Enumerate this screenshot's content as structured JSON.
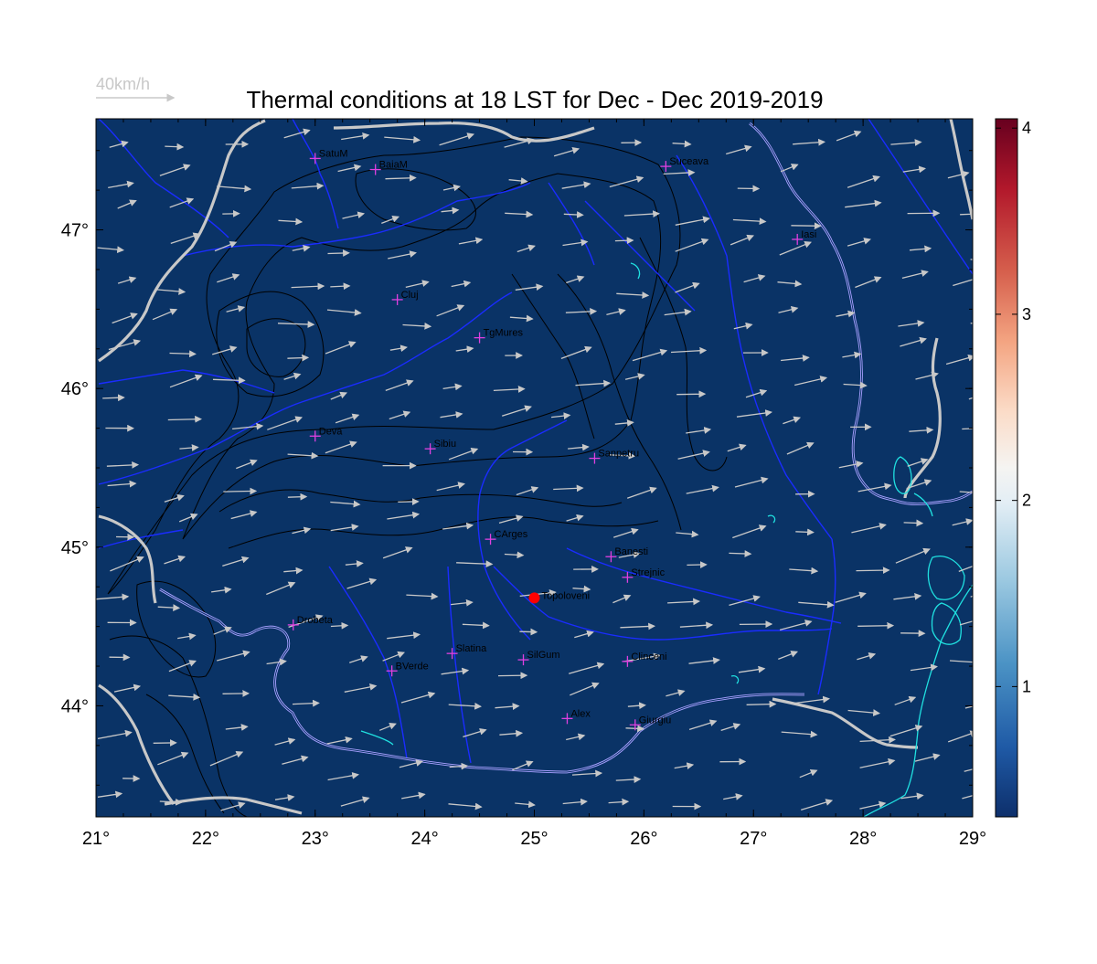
{
  "title": "Thermal conditions at 18 LST for Dec - Dec  2019-2019",
  "wind_reference": {
    "label": "40km/h",
    "color": "#c8c8c8"
  },
  "colors": {
    "background": "#0a3366",
    "contour": "#000000",
    "rivers": "#1a2cff",
    "borders": "#c8c8c8",
    "coast": "#a8a0ff",
    "lakes": "#20e0e0",
    "station_marker": "#e040e0",
    "highlight_marker": "#ff0000",
    "wind_arrow": "#c8c8c8"
  },
  "map": {
    "lon_range": [
      21,
      29
    ],
    "lat_range": [
      43.3,
      47.7
    ],
    "lon_ticks": [
      "21°",
      "22°",
      "23°",
      "24°",
      "25°",
      "26°",
      "27°",
      "28°",
      "29°"
    ],
    "lat_ticks": [
      "44°",
      "45°",
      "46°",
      "47°"
    ]
  },
  "colorbar": {
    "range": [
      0.3,
      4.05
    ],
    "ticks": [
      "1",
      "2",
      "3",
      "4"
    ],
    "tick_values": [
      1,
      2,
      3,
      4
    ],
    "colormap": "RdBu_r"
  },
  "stations": [
    {
      "name": "SatuM",
      "lon": 23.0,
      "lat": 47.45
    },
    {
      "name": "BaiaM",
      "lon": 23.55,
      "lat": 47.38
    },
    {
      "name": "Suceava",
      "lon": 26.2,
      "lat": 47.4
    },
    {
      "name": "Iasi",
      "lon": 27.4,
      "lat": 46.94
    },
    {
      "name": "Cluj",
      "lon": 23.75,
      "lat": 46.56
    },
    {
      "name": "TgMures",
      "lon": 24.5,
      "lat": 46.32
    },
    {
      "name": "Deva",
      "lon": 23.0,
      "lat": 45.7
    },
    {
      "name": "Sibiu",
      "lon": 24.05,
      "lat": 45.62
    },
    {
      "name": "Sanpetru",
      "lon": 25.55,
      "lat": 45.56
    },
    {
      "name": "CArges",
      "lon": 24.6,
      "lat": 45.05
    },
    {
      "name": "Banesti",
      "lon": 25.7,
      "lat": 44.94
    },
    {
      "name": "Strejnic",
      "lon": 25.85,
      "lat": 44.81
    },
    {
      "name": "Drobeta",
      "lon": 22.8,
      "lat": 44.51
    },
    {
      "name": "Slatina",
      "lon": 24.25,
      "lat": 44.33
    },
    {
      "name": "SilGum",
      "lon": 24.9,
      "lat": 44.29
    },
    {
      "name": "Clinceni",
      "lon": 25.85,
      "lat": 44.28
    },
    {
      "name": "BVerde",
      "lon": 23.7,
      "lat": 44.22
    },
    {
      "name": "Alex",
      "lon": 25.3,
      "lat": 43.92
    },
    {
      "name": "Giurgiu",
      "lon": 25.92,
      "lat": 43.88
    }
  ],
  "highlight": {
    "name": "Topoloveni",
    "lon": 25.0,
    "lat": 44.68
  }
}
